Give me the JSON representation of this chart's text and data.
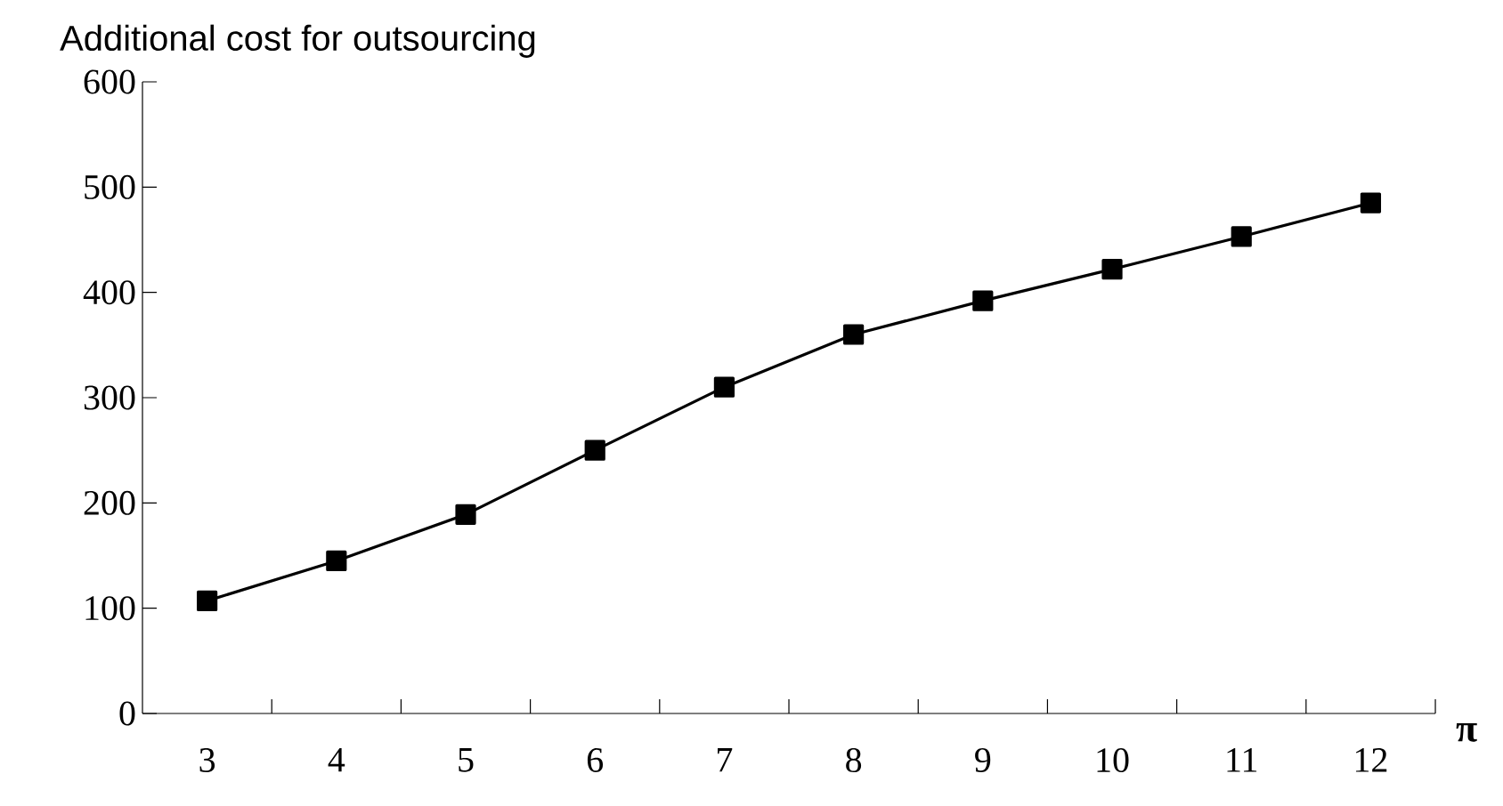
{
  "chart_data": {
    "type": "line",
    "ylabel": "Additional cost for outsourcing",
    "xlabel": "π",
    "categories": [
      "3",
      "4",
      "5",
      "6",
      "7",
      "8",
      "9",
      "10",
      "11",
      "12"
    ],
    "series": [
      {
        "color": "#000000",
        "values": [
          107,
          145,
          189,
          250,
          310,
          360,
          392,
          422,
          453,
          485
        ]
      }
    ],
    "ylim": [
      0,
      600
    ],
    "yticks": [
      0,
      100,
      200,
      300,
      400,
      500,
      600
    ],
    "marker": "square",
    "line_style": "solid",
    "grid": false
  }
}
